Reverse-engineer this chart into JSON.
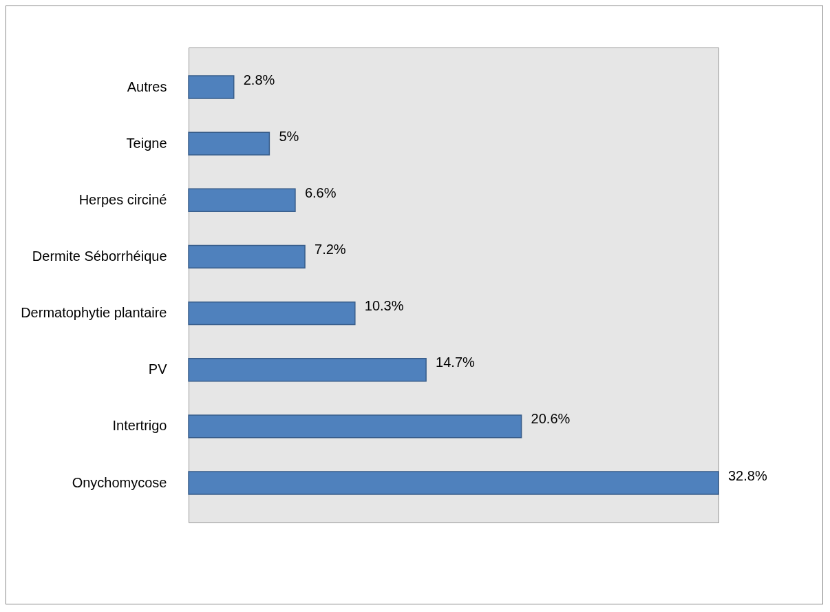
{
  "chart_data": {
    "type": "bar",
    "orientation": "horizontal",
    "categories": [
      "Autres",
      "Teigne",
      "Herpes circiné",
      "Dermite Séborrhéique",
      "Dermatophytie plantaire",
      "PV",
      "Intertrigo",
      "Onychomycose"
    ],
    "values": [
      2.8,
      5,
      6.6,
      7.2,
      10.3,
      14.7,
      20.6,
      32.8
    ],
    "value_labels": [
      "2.8%",
      "5%",
      "6.6%",
      "7.2%",
      "10.3%",
      "14.7%",
      "20.6%",
      "32.8%"
    ],
    "color": "#4f81bd",
    "tick_labels": "y"
  }
}
